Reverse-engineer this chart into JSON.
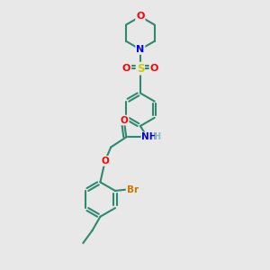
{
  "bg_color": "#e8e8e8",
  "bond_color": "#2d8a6e",
  "atom_colors": {
    "O": "#ff0000",
    "N": "#0000ff",
    "S": "#cccc00",
    "Br": "#cc7700",
    "H": "#88bbbb",
    "C": "#2d8a6e"
  },
  "bond_width": 1.5,
  "figsize": [
    3.0,
    3.0
  ],
  "dpi": 100
}
